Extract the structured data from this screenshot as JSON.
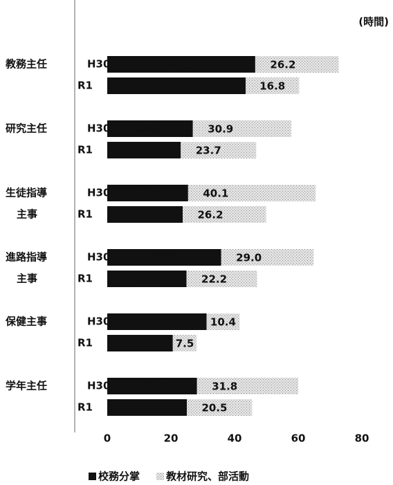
{
  "chart_data": {
    "type": "stacked_barh",
    "unit_label": "(時間)",
    "groups": [
      [
        "教務主任"
      ],
      [
        "研究主任"
      ],
      [
        "生徒指導",
        "主事"
      ],
      [
        "進路指導",
        "主事"
      ],
      [
        "保健主事"
      ],
      [
        "学年主任"
      ]
    ],
    "categories": [
      "H30",
      "R1",
      "H30",
      "R1",
      "H30",
      "R1",
      "H30",
      "R1",
      "H30",
      "R1",
      "H30",
      "R1"
    ],
    "series": [
      {
        "name": "校務分掌",
        "color": "#111111",
        "values": [
          46.5,
          43.5,
          26.9,
          23.1,
          25.4,
          23.7,
          35.8,
          24.9,
          31.2,
          20.6,
          28.2,
          25.0
        ],
        "value_labels": [
          "46.5",
          "43.5",
          "26.9",
          "23.1",
          "25.4",
          "23.7",
          "35.8",
          "24.9",
          "31.2",
          "20.6",
          "28.2",
          "25.0"
        ]
      },
      {
        "name": "教材研究、部活動",
        "color": "#e2e2e2",
        "values": [
          26.2,
          16.8,
          30.9,
          23.7,
          40.1,
          26.2,
          29.0,
          22.2,
          10.4,
          7.5,
          31.8,
          20.5
        ],
        "value_labels": [
          "26.2",
          "16.8",
          "30.9",
          "23.7",
          "40.1",
          "26.2",
          "29.0",
          "22.2",
          "10.4",
          "7.5",
          "31.8",
          "20.5"
        ]
      }
    ],
    "xlim": [
      0,
      80
    ],
    "xticks": [
      0,
      20,
      40,
      60,
      80
    ]
  }
}
